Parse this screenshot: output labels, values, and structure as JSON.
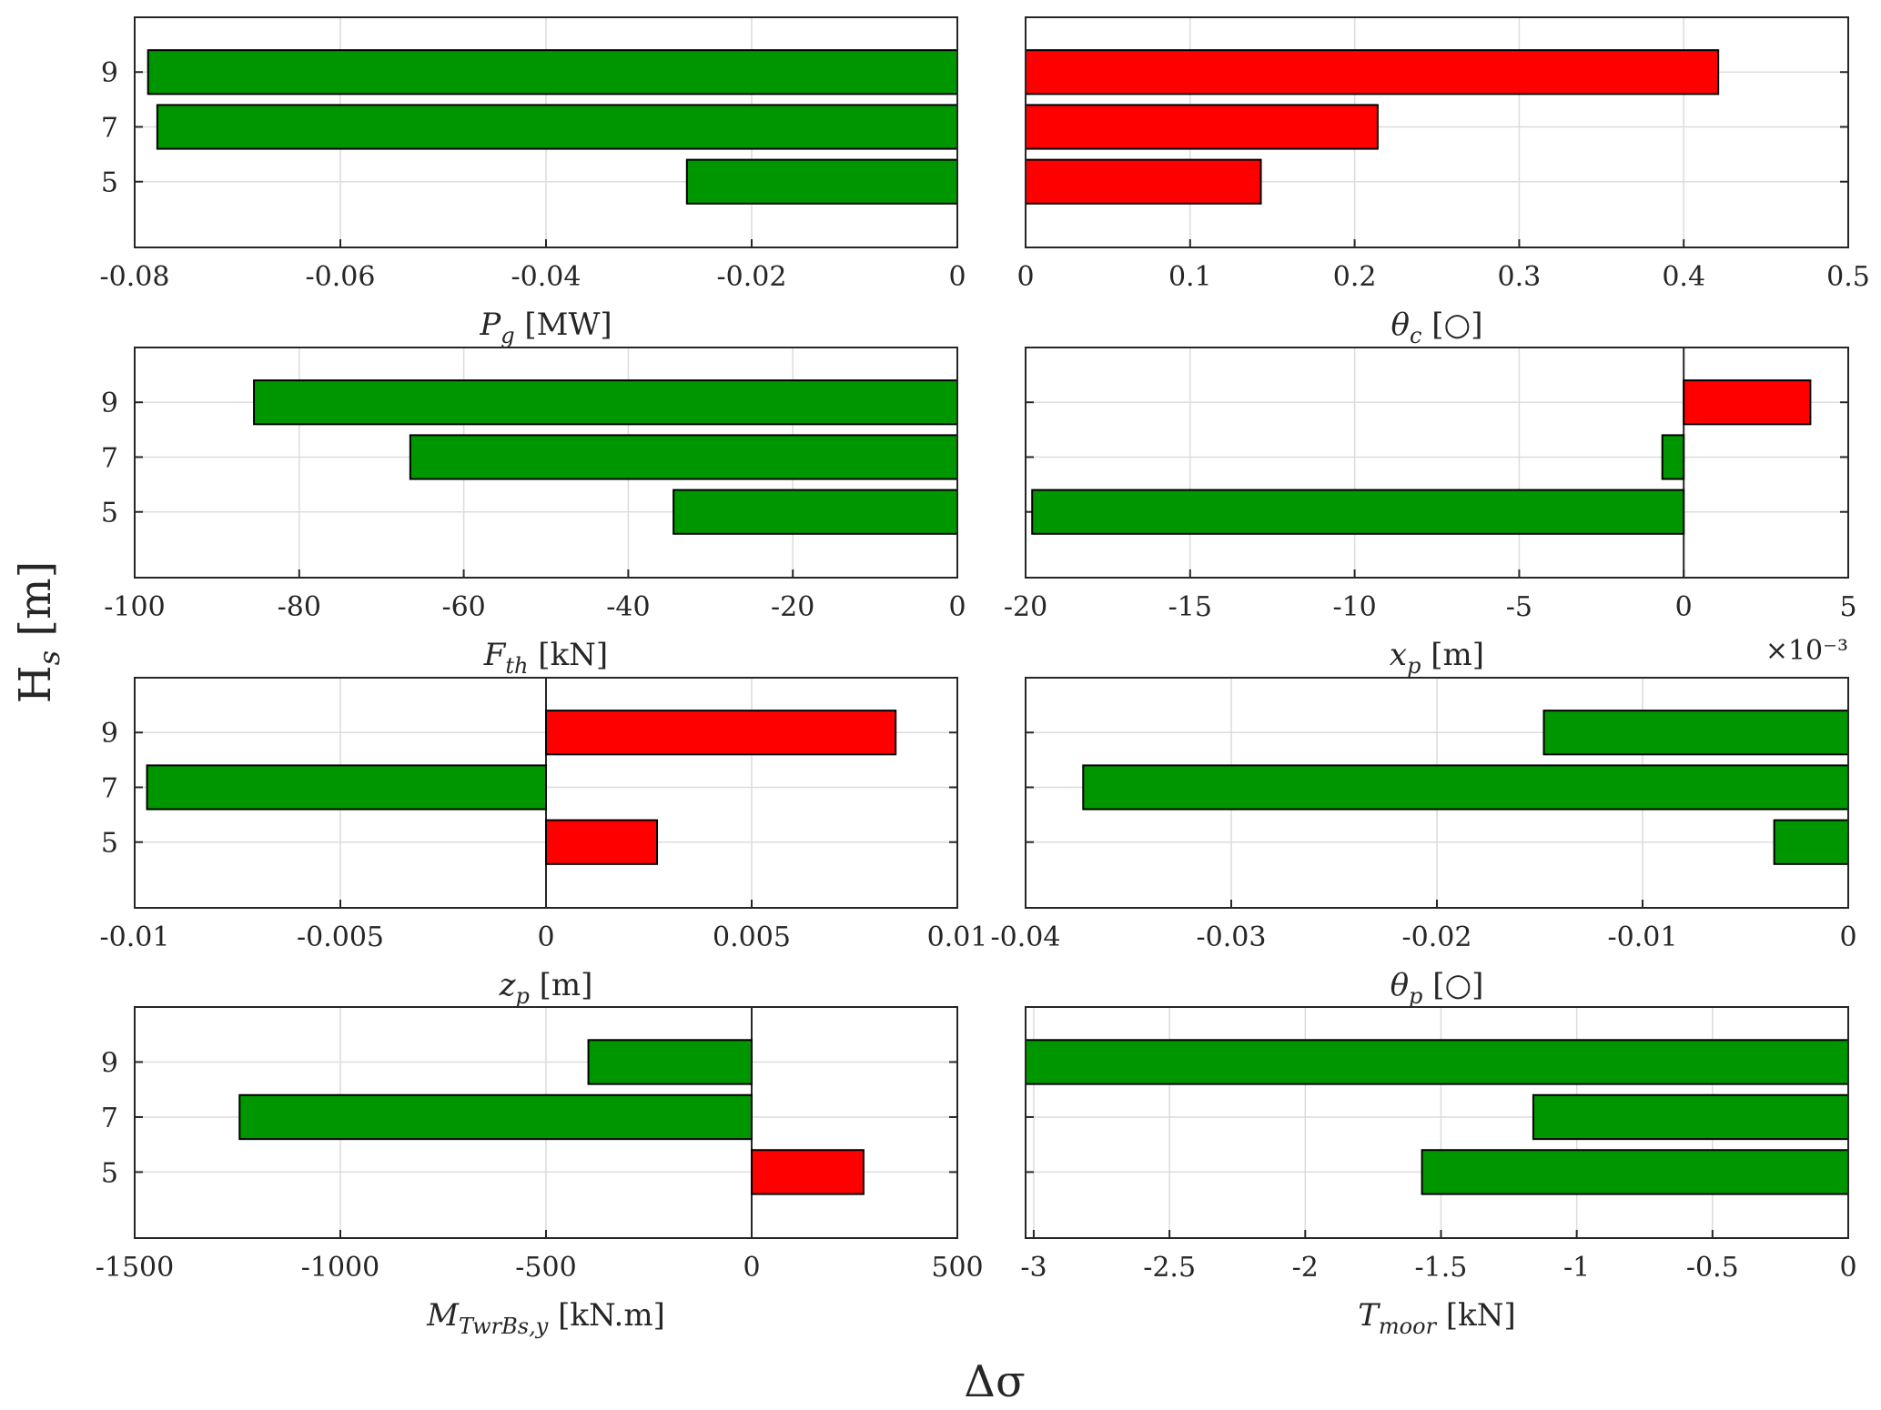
{
  "figure": {
    "y_axis_title": "Hs [m]",
    "x_axis_title": "Δσ",
    "colors": {
      "increase": "#ff0000",
      "decrease": "#009600"
    }
  },
  "chart_data": [
    {
      "type": "bar",
      "orientation": "horizontal",
      "xlabel": {
        "var": "P",
        "sub": "g",
        "unit": "[MW]"
      },
      "categories": [
        5,
        7,
        9
      ],
      "values": [
        -0.0263,
        -0.0778,
        -0.0787
      ],
      "xlim": [
        -0.08,
        0
      ],
      "xticks": [
        -0.08,
        -0.06,
        -0.04,
        -0.02,
        0
      ],
      "xtick_labels": [
        "-0.08",
        "-0.06",
        "-0.04",
        "-0.02",
        "0"
      ],
      "grid": true
    },
    {
      "type": "bar",
      "orientation": "horizontal",
      "xlabel": {
        "var": "θ",
        "sub": "c",
        "unit": "[○]"
      },
      "categories": [
        5,
        7,
        9
      ],
      "values": [
        0.143,
        0.214,
        0.421
      ],
      "xlim": [
        0,
        0.5
      ],
      "xticks": [
        0,
        0.1,
        0.2,
        0.3,
        0.4,
        0.5
      ],
      "xtick_labels": [
        "0",
        "0.1",
        "0.2",
        "0.3",
        "0.4",
        "0.5"
      ],
      "grid": true
    },
    {
      "type": "bar",
      "orientation": "horizontal",
      "xlabel": {
        "var": "F",
        "sub": "th",
        "unit": "[kN]"
      },
      "categories": [
        5,
        7,
        9
      ],
      "values": [
        -34.5,
        -66.5,
        -85.5
      ],
      "xlim": [
        -100,
        0
      ],
      "xticks": [
        -100,
        -80,
        -60,
        -40,
        -20,
        0
      ],
      "xtick_labels": [
        "-100",
        "-80",
        "-60",
        "-40",
        "-20",
        "0"
      ],
      "grid": true
    },
    {
      "type": "bar",
      "orientation": "horizontal",
      "xlabel": {
        "var": "x",
        "sub": "p",
        "unit": "[m]"
      },
      "exponent_label": "×10⁻³",
      "categories": [
        5,
        7,
        9
      ],
      "values": [
        -19.8,
        -0.65,
        3.85
      ],
      "xlim": [
        -20,
        5
      ],
      "xticks": [
        -20,
        -15,
        -10,
        -5,
        0,
        5
      ],
      "xtick_labels": [
        "-20",
        "-15",
        "-10",
        "-5",
        "0",
        "5"
      ],
      "grid": true
    },
    {
      "type": "bar",
      "orientation": "horizontal",
      "xlabel": {
        "var": "z",
        "sub": "p",
        "unit": "[m]"
      },
      "categories": [
        5,
        7,
        9
      ],
      "values": [
        0.0027,
        -0.0097,
        0.0085
      ],
      "xlim": [
        -0.01,
        0.01
      ],
      "xticks": [
        -0.01,
        -0.005,
        0,
        0.005,
        0.01
      ],
      "xtick_labels": [
        "-0.01",
        "-0.005",
        "0",
        "0.005",
        "0.01"
      ],
      "grid": true
    },
    {
      "type": "bar",
      "orientation": "horizontal",
      "xlabel": {
        "var": "θ",
        "sub": "p",
        "unit": "[○]"
      },
      "categories": [
        5,
        7,
        9
      ],
      "values": [
        -0.0036,
        -0.0372,
        -0.0148
      ],
      "xlim": [
        -0.04,
        0
      ],
      "xticks": [
        -0.04,
        -0.03,
        -0.02,
        -0.01,
        0
      ],
      "xtick_labels": [
        "-0.04",
        "-0.03",
        "-0.02",
        "-0.01",
        "0"
      ],
      "grid": true
    },
    {
      "type": "bar",
      "orientation": "horizontal",
      "xlabel": {
        "var": "M",
        "sub": "TwrBs,y",
        "unit": "[kN.m]"
      },
      "categories": [
        5,
        7,
        9
      ],
      "values": [
        272,
        -1245,
        -397
      ],
      "xlim": [
        -1500,
        500
      ],
      "xticks": [
        -1500,
        -1000,
        -500,
        0,
        500
      ],
      "xtick_labels": [
        "-1500",
        "-1000",
        "-500",
        "0",
        "500"
      ],
      "grid": true
    },
    {
      "type": "bar",
      "orientation": "horizontal",
      "xlabel": {
        "var": "T",
        "sub": "moor",
        "unit": "[kN]"
      },
      "categories": [
        5,
        7,
        9
      ],
      "values": [
        -1.57,
        -1.16,
        -3.03
      ],
      "xlim": [
        -3.03,
        0
      ],
      "xticks": [
        -3,
        -2.5,
        -2,
        -1.5,
        -1,
        -0.5,
        0
      ],
      "xtick_labels": [
        "-3",
        "-2.5",
        "-2",
        "-1.5",
        "-1",
        "-0.5",
        "0"
      ],
      "grid": true
    }
  ]
}
